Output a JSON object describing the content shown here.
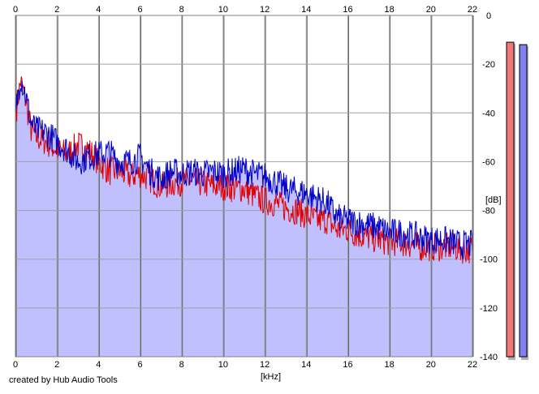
{
  "credit": "created by Hub Audio Tools",
  "chart_data": {
    "type": "area",
    "xlabel": "[kHz]",
    "ylabel": "[dB]",
    "xlim": [
      0,
      22
    ],
    "ylim": [
      -140,
      0
    ],
    "x_ticks": [
      0,
      2,
      4,
      6,
      8,
      10,
      12,
      14,
      16,
      18,
      20,
      22
    ],
    "y_ticks": [
      0,
      -20,
      -40,
      -60,
      -80,
      -100,
      -120,
      -140
    ],
    "grid": true,
    "x_ticks_top": true,
    "series": [
      {
        "color": "#e00000",
        "x": [
          0,
          0.25,
          0.5,
          0.75,
          1,
          1.5,
          2,
          2.5,
          3,
          3.5,
          4,
          4.5,
          5,
          5.5,
          6,
          6.5,
          7,
          7.5,
          8,
          8.5,
          9,
          9.5,
          10,
          10.5,
          11,
          11.5,
          12,
          12.5,
          13,
          13.5,
          14,
          14.5,
          15,
          15.5,
          16,
          16.5,
          17,
          17.5,
          18,
          18.5,
          19,
          19.5,
          20,
          20.5,
          21,
          21.5,
          22
        ],
        "y": [
          -41,
          -27,
          -35,
          -47,
          -50,
          -52,
          -55,
          -57,
          -53,
          -55,
          -60,
          -64,
          -64,
          -66,
          -65,
          -67,
          -70,
          -69,
          -68,
          -68,
          -69,
          -70,
          -70,
          -71,
          -71,
          -74,
          -76,
          -77,
          -79,
          -80,
          -82,
          -84,
          -84,
          -88,
          -88,
          -90,
          -91,
          -92,
          -93,
          -93,
          -94,
          -95,
          -95,
          -95,
          -95,
          -96,
          -96
        ]
      },
      {
        "color": "#0000c8",
        "x": [
          0,
          0.25,
          0.5,
          0.75,
          1,
          1.5,
          2,
          2.5,
          3,
          3.5,
          4,
          4.5,
          5,
          5.5,
          6,
          6.5,
          7,
          7.5,
          8,
          8.5,
          9,
          9.5,
          10,
          10.5,
          11,
          11.5,
          12,
          12.5,
          13,
          13.5,
          14,
          14.5,
          15,
          15.5,
          16,
          16.5,
          17,
          17.5,
          18,
          18.5,
          19,
          19.5,
          20,
          20.5,
          21,
          21.5,
          22
        ],
        "y": [
          -40,
          -25,
          -33,
          -44,
          -47,
          -48,
          -52,
          -55,
          -60,
          -58,
          -57,
          -56,
          -60,
          -60,
          -58,
          -64,
          -67,
          -64,
          -65,
          -64,
          -65,
          -64,
          -65,
          -64,
          -63,
          -65,
          -66,
          -68,
          -71,
          -72,
          -73,
          -75,
          -77,
          -83,
          -84,
          -85,
          -86,
          -87,
          -89,
          -89,
          -90,
          -91,
          -92,
          -92,
          -93,
          -94,
          -94
        ]
      }
    ],
    "fill_color": "#c0c0ff",
    "meters": [
      {
        "color": "#f07878",
        "level": -11
      },
      {
        "color": "#8080f0",
        "level": -12
      }
    ]
  }
}
